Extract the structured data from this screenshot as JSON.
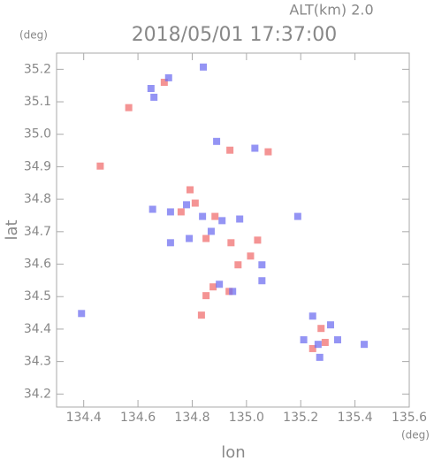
{
  "chart_data": {
    "type": "scatter",
    "title": "2018/05/01 17:37:00",
    "subtitle": "ALT(km) 2.0",
    "x_label": "lon",
    "y_label": "lat",
    "x_unit": "(deg)",
    "y_unit": "(deg)",
    "xlim": [
      134.3,
      135.6
    ],
    "ylim": [
      34.16,
      35.25
    ],
    "xticks": [
      134.4,
      134.6,
      134.8,
      {
        "value": 135,
        "label": "135.0"
      },
      135.2,
      135.4,
      135.6
    ],
    "yticks": [
      34.2,
      34.3,
      34.4,
      34.5,
      34.6,
      34.7,
      34.8,
      34.9,
      {
        "value": 35,
        "label": "35.0"
      },
      35.1,
      35.2
    ],
    "grid": false,
    "series": [
      {
        "color": "#f07070",
        "x": [
          134.566,
          134.697,
          134.792,
          134.811,
          134.884,
          134.939,
          134.851,
          134.943,
          135.015,
          135.041,
          134.877,
          134.851,
          134.834,
          134.936,
          135.29,
          135.244,
          135.275,
          135.08,
          134.461,
          134.759,
          134.969
        ],
        "values": [
          35.082,
          35.16,
          34.829,
          34.788,
          34.747,
          34.951,
          34.679,
          34.666,
          34.625,
          34.674,
          34.53,
          34.503,
          34.443,
          34.516,
          34.359,
          34.34,
          34.402,
          34.946,
          34.902,
          34.761,
          34.598
        ]
      },
      {
        "color": "#7070f0",
        "x": [
          134.648,
          134.713,
          134.659,
          134.841,
          134.89,
          135.031,
          134.654,
          134.72,
          134.779,
          134.838,
          134.91,
          134.975,
          134.87,
          134.72,
          134.789,
          135.057,
          135.189,
          134.9,
          134.949,
          134.392,
          135.244,
          135.31,
          135.211,
          135.264,
          135.336,
          135.434,
          135.27,
          135.057
        ],
        "values": [
          35.141,
          35.174,
          35.114,
          35.207,
          34.978,
          34.957,
          34.769,
          34.761,
          34.783,
          34.747,
          34.734,
          34.739,
          34.701,
          34.666,
          34.679,
          34.598,
          34.747,
          34.538,
          34.516,
          34.448,
          34.44,
          34.413,
          34.367,
          34.353,
          34.367,
          34.353,
          34.313,
          34.549
        ]
      }
    ]
  }
}
